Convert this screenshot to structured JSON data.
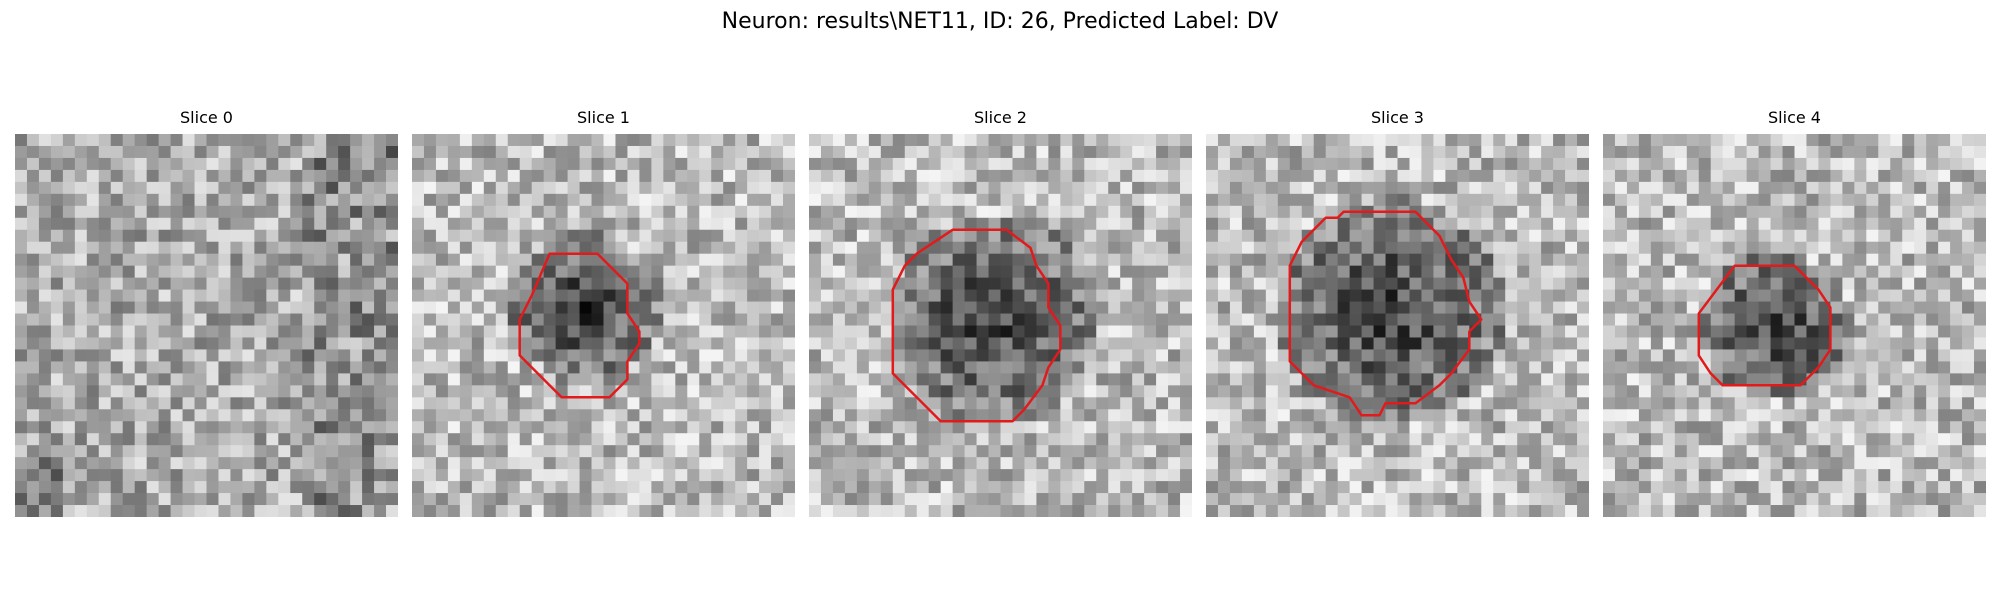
{
  "figure": {
    "title": "Neuron: results\\NET11, ID: 26, Predicted Label: DV"
  },
  "panels": [
    {
      "title": "Slice 0",
      "has_contour": false,
      "tone": "mixed"
    },
    {
      "title": "Slice 1",
      "has_contour": true,
      "tone": "dark-center"
    },
    {
      "title": "Slice 2",
      "has_contour": true,
      "tone": "dark-center"
    },
    {
      "title": "Slice 3",
      "has_contour": true,
      "tone": "dark-center"
    },
    {
      "title": "Slice 4",
      "has_contour": true,
      "tone": "dark-center"
    }
  ],
  "colors": {
    "contour": "#e31a1c",
    "background": "#ffffff"
  },
  "colormap": "gray"
}
